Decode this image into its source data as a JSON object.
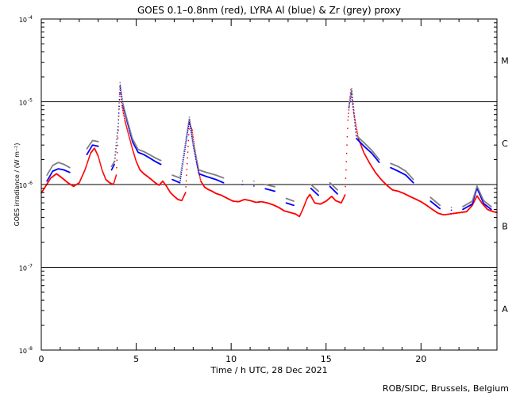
{
  "chart_data": {
    "type": "scatter",
    "title": "GOES 0.1–0.8nm (red), LYRA Al (blue) & Zr (grey) proxy",
    "xlabel": "Time / h UTC, 28 Dec 2021",
    "ylabel": "GOES irradiance / (W m⁻²)",
    "credit": "ROB/SIDC, Brussels, Belgium",
    "xlim": [
      0,
      24
    ],
    "ylim_log10": [
      -8,
      -4
    ],
    "x_ticks": [
      {
        "value": 0,
        "label": "0"
      },
      {
        "value": 5,
        "label": "5"
      },
      {
        "value": 10,
        "label": "10"
      },
      {
        "value": 15,
        "label": "15"
      },
      {
        "value": 20,
        "label": "20"
      }
    ],
    "y_ticks": [
      {
        "exp": -8,
        "label": "10",
        "sup": "-8"
      },
      {
        "exp": -7,
        "label": "10",
        "sup": "-7"
      },
      {
        "exp": -6,
        "label": "10",
        "sup": "-6"
      },
      {
        "exp": -5,
        "label": "10",
        "sup": "-5"
      },
      {
        "exp": -4,
        "label": "10",
        "sup": "-4"
      }
    ],
    "flare_class_lines": [
      1e-07,
      1e-06,
      1e-05
    ],
    "flare_classes": [
      {
        "label": "A",
        "exp": -7.5
      },
      {
        "label": "B",
        "exp": -6.5
      },
      {
        "label": "C",
        "exp": -5.5
      },
      {
        "label": "M",
        "exp": -4.5
      }
    ],
    "series": [
      {
        "name": "GOES 0.1-0.8nm",
        "color": "#ff0000",
        "points": [
          [
            0.0,
            7.9e-07
          ],
          [
            0.2,
            9.3e-07
          ],
          [
            0.5,
            1.2e-06
          ],
          [
            0.8,
            1.35e-06
          ],
          [
            1.1,
            1.2e-06
          ],
          [
            1.4,
            1.05e-06
          ],
          [
            1.7,
            9.5e-07
          ],
          [
            2.0,
            1.05e-06
          ],
          [
            2.3,
            1.5e-06
          ],
          [
            2.6,
            2.4e-06
          ],
          [
            2.8,
            2.75e-06
          ],
          [
            3.0,
            2.2e-06
          ],
          [
            3.2,
            1.5e-06
          ],
          [
            3.4,
            1.15e-06
          ],
          [
            3.6,
            1.05e-06
          ],
          [
            3.8,
            1e-06
          ],
          [
            3.95,
            1.3e-06
          ],
          [
            4.05,
            4.5e-06
          ],
          [
            4.15,
            1.5e-05
          ],
          [
            4.25,
            9e-06
          ],
          [
            4.4,
            6e-06
          ],
          [
            4.6,
            4e-06
          ],
          [
            4.8,
            2.7e-06
          ],
          [
            5.0,
            1.9e-06
          ],
          [
            5.2,
            1.5e-06
          ],
          [
            5.4,
            1.35e-06
          ],
          [
            5.6,
            1.25e-06
          ],
          [
            5.8,
            1.15e-06
          ],
          [
            6.0,
            1.05e-06
          ],
          [
            6.2,
            9.8e-07
          ],
          [
            6.4,
            1.1e-06
          ],
          [
            6.6,
            9.5e-07
          ],
          [
            6.8,
            8e-07
          ],
          [
            7.0,
            7.2e-07
          ],
          [
            7.2,
            6.6e-07
          ],
          [
            7.4,
            6.4e-07
          ],
          [
            7.6,
            8e-07
          ],
          [
            7.8,
            5.5e-06
          ],
          [
            7.95,
            4.5e-06
          ],
          [
            8.2,
            1.8e-06
          ],
          [
            8.4,
            1.1e-06
          ],
          [
            8.6,
            9.3e-07
          ],
          [
            8.8,
            8.7e-07
          ],
          [
            9.0,
            8.3e-07
          ],
          [
            9.2,
            7.8e-07
          ],
          [
            9.5,
            7.4e-07
          ],
          [
            9.8,
            6.8e-07
          ],
          [
            10.1,
            6.3e-07
          ],
          [
            10.4,
            6.2e-07
          ],
          [
            10.7,
            6.6e-07
          ],
          [
            11.0,
            6.4e-07
          ],
          [
            11.3,
            6.1e-07
          ],
          [
            11.6,
            6.2e-07
          ],
          [
            11.9,
            6e-07
          ],
          [
            12.2,
            5.7e-07
          ],
          [
            12.5,
            5.3e-07
          ],
          [
            12.8,
            4.8e-07
          ],
          [
            13.1,
            4.6e-07
          ],
          [
            13.4,
            4.4e-07
          ],
          [
            13.6,
            4.1e-07
          ],
          [
            13.8,
            5.2e-07
          ],
          [
            14.0,
            6.8e-07
          ],
          [
            14.15,
            7.6e-07
          ],
          [
            14.4,
            6e-07
          ],
          [
            14.7,
            5.8e-07
          ],
          [
            15.0,
            6.3e-07
          ],
          [
            15.3,
            7.2e-07
          ],
          [
            15.5,
            6.4e-07
          ],
          [
            15.8,
            6e-07
          ],
          [
            16.0,
            7.5e-07
          ],
          [
            16.15,
            6e-06
          ],
          [
            16.3,
            1.4e-05
          ],
          [
            16.45,
            7.5e-06
          ],
          [
            16.7,
            3.6e-06
          ],
          [
            17.0,
            2.4e-06
          ],
          [
            17.3,
            1.8e-06
          ],
          [
            17.6,
            1.4e-06
          ],
          [
            17.9,
            1.15e-06
          ],
          [
            18.2,
            9.8e-07
          ],
          [
            18.5,
            8.6e-07
          ],
          [
            18.8,
            8.3e-07
          ],
          [
            19.1,
            7.8e-07
          ],
          [
            19.4,
            7.2e-07
          ],
          [
            19.7,
            6.7e-07
          ],
          [
            20.0,
            6.2e-07
          ],
          [
            20.3,
            5.6e-07
          ],
          [
            20.6,
            5e-07
          ],
          [
            20.9,
            4.5e-07
          ],
          [
            21.2,
            4.3e-07
          ],
          [
            21.5,
            4.4e-07
          ],
          [
            21.8,
            4.5e-07
          ],
          [
            22.1,
            4.6e-07
          ],
          [
            22.4,
            4.7e-07
          ],
          [
            22.7,
            5.6e-07
          ],
          [
            22.95,
            7.3e-07
          ],
          [
            23.2,
            6e-07
          ],
          [
            23.5,
            5e-07
          ],
          [
            23.8,
            4.7e-07
          ],
          [
            24.0,
            4.6e-07
          ]
        ]
      },
      {
        "name": "LYRA Al proxy",
        "color": "#0000ff",
        "points": [
          [
            0.3,
            1.1e-06
          ],
          [
            0.6,
            1.45e-06
          ],
          [
            0.9,
            1.55e-06
          ],
          [
            1.2,
            1.5e-06
          ],
          [
            1.5,
            1.4e-06
          ],
          [
            2.4,
            2.3e-06
          ],
          [
            2.7,
            3e-06
          ],
          [
            3.0,
            2.9e-06
          ],
          [
            3.7,
            1.5e-06
          ],
          [
            3.85,
            1.75e-06
          ],
          [
            4.05,
            5e-06
          ],
          [
            4.15,
            1.55e-05
          ],
          [
            4.3,
            9e-06
          ],
          [
            4.5,
            6e-06
          ],
          [
            4.8,
            3.3e-06
          ],
          [
            5.1,
            2.45e-06
          ],
          [
            5.4,
            2.3e-06
          ],
          [
            5.7,
            2.1e-06
          ],
          [
            6.0,
            1.9e-06
          ],
          [
            6.3,
            1.75e-06
          ],
          [
            6.9,
            1.15e-06
          ],
          [
            7.3,
            1.05e-06
          ],
          [
            7.8,
            6e-06
          ],
          [
            8.0,
            3e-06
          ],
          [
            8.3,
            1.35e-06
          ],
          [
            8.7,
            1.25e-06
          ],
          [
            9.2,
            1.15e-06
          ],
          [
            9.6,
            1.05e-06
          ],
          [
            10.6,
            1e-06
          ],
          [
            11.2,
            9.6e-07
          ],
          [
            11.8,
            8.9e-07
          ],
          [
            12.3,
            8.3e-07
          ],
          [
            12.9,
            6e-07
          ],
          [
            13.3,
            5.6e-07
          ],
          [
            14.2,
            9e-07
          ],
          [
            14.6,
            7.4e-07
          ],
          [
            15.2,
            9.5e-07
          ],
          [
            15.6,
            7.7e-07
          ],
          [
            16.2,
            8.5e-06
          ],
          [
            16.35,
            1.35e-05
          ],
          [
            16.6,
            3.6e-06
          ],
          [
            17.0,
            2.9e-06
          ],
          [
            17.4,
            2.4e-06
          ],
          [
            17.8,
            1.85e-06
          ],
          [
            18.4,
            1.6e-06
          ],
          [
            18.8,
            1.45e-06
          ],
          [
            19.2,
            1.3e-06
          ],
          [
            19.6,
            1.05e-06
          ],
          [
            20.5,
            6.3e-07
          ],
          [
            21.0,
            5.1e-07
          ],
          [
            21.6,
            4.9e-07
          ],
          [
            22.2,
            5e-07
          ],
          [
            22.7,
            5.8e-07
          ],
          [
            22.95,
            9e-07
          ],
          [
            23.3,
            5.9e-07
          ],
          [
            23.7,
            5e-07
          ]
        ]
      },
      {
        "name": "LYRA Zr proxy",
        "color": "#808080",
        "points": [
          [
            0.3,
            1.3e-06
          ],
          [
            0.6,
            1.7e-06
          ],
          [
            0.9,
            1.85e-06
          ],
          [
            1.2,
            1.75e-06
          ],
          [
            1.5,
            1.6e-06
          ],
          [
            2.4,
            2.7e-06
          ],
          [
            2.7,
            3.4e-06
          ],
          [
            3.0,
            3.3e-06
          ],
          [
            3.7,
            1.65e-06
          ],
          [
            3.85,
            1.9e-06
          ],
          [
            4.05,
            5.5e-06
          ],
          [
            4.15,
            1.7e-05
          ],
          [
            4.3,
            9.6e-06
          ],
          [
            4.5,
            6.4e-06
          ],
          [
            4.8,
            3.6e-06
          ],
          [
            5.1,
            2.65e-06
          ],
          [
            5.4,
            2.5e-06
          ],
          [
            5.7,
            2.3e-06
          ],
          [
            6.0,
            2.1e-06
          ],
          [
            6.3,
            1.95e-06
          ],
          [
            6.9,
            1.3e-06
          ],
          [
            7.3,
            1.2e-06
          ],
          [
            7.8,
            6.5e-06
          ],
          [
            8.0,
            3.3e-06
          ],
          [
            8.3,
            1.5e-06
          ],
          [
            8.7,
            1.4e-06
          ],
          [
            9.2,
            1.3e-06
          ],
          [
            9.6,
            1.2e-06
          ],
          [
            10.6,
            1.1e-06
          ],
          [
            11.2,
            1.1e-06
          ],
          [
            11.8,
            1e-06
          ],
          [
            12.3,
            9.4e-07
          ],
          [
            12.9,
            6.8e-07
          ],
          [
            13.3,
            6.3e-07
          ],
          [
            14.2,
            1e-06
          ],
          [
            14.6,
            8.3e-07
          ],
          [
            15.2,
            1.05e-06
          ],
          [
            15.6,
            8.6e-07
          ],
          [
            16.2,
            9e-06
          ],
          [
            16.35,
            1.45e-05
          ],
          [
            16.6,
            3.9e-06
          ],
          [
            17.0,
            3.2e-06
          ],
          [
            17.4,
            2.6e-06
          ],
          [
            17.8,
            2e-06
          ],
          [
            18.4,
            1.8e-06
          ],
          [
            18.8,
            1.65e-06
          ],
          [
            19.2,
            1.45e-06
          ],
          [
            19.6,
            1.15e-06
          ],
          [
            20.5,
            7e-07
          ],
          [
            21.0,
            5.6e-07
          ],
          [
            21.6,
            5.3e-07
          ],
          [
            22.2,
            5.4e-07
          ],
          [
            22.7,
            6.3e-07
          ],
          [
            22.95,
            9.6e-07
          ],
          [
            23.3,
            6.4e-07
          ],
          [
            23.7,
            5.4e-07
          ]
        ]
      }
    ]
  }
}
